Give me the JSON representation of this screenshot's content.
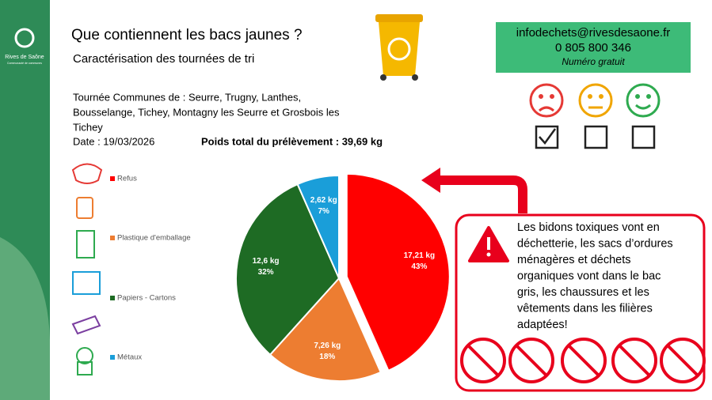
{
  "logo": {
    "name": "Rives de Saône",
    "tagline": "Communauté de communes"
  },
  "header": {
    "title": "Que contiennent les bacs jaunes ?",
    "subtitle": "Caractérisation des tournées de tri"
  },
  "info": {
    "tour_lines": [
      "Tournée Communes de : Seurre, Trugny, Lanthes,",
      "Bousselange, Tichey, Montagny les Seurre et Grosbois les",
      "Tichey"
    ],
    "date": "Date : 19/03/2026",
    "total": "Poids total du prélèvement : 39,69 kg"
  },
  "contact": {
    "email": "infodechets@rivesdesaone.fr",
    "phone": "0 805 800 346",
    "note": "Numéro gratuit"
  },
  "chart_data": {
    "type": "pie",
    "categories": [
      "Refus",
      "Plastique d'emballage",
      "Papiers - Cartons",
      "Métaux"
    ],
    "values": [
      17.21,
      7.26,
      12.6,
      2.62
    ],
    "value_labels": [
      "17,21 kg",
      "7,26 kg",
      "12,6 kg",
      "2,62 kg"
    ],
    "share_labels": [
      "43%",
      "18%",
      "32%",
      "7%"
    ],
    "colors": [
      "#ff0000",
      "#ed7d31",
      "#1e6b24",
      "#1a9ed9"
    ],
    "exploded": [
      true,
      false,
      false,
      false
    ]
  },
  "warning": {
    "lines": [
      "Les bidons toxiques vont en",
      "déchetterie, les sacs d’ordures",
      "ménagères et déchets",
      "organiques vont dans le bac",
      "gris, les chaussures et les",
      "vêtements dans les filières",
      "adaptées!"
    ]
  }
}
